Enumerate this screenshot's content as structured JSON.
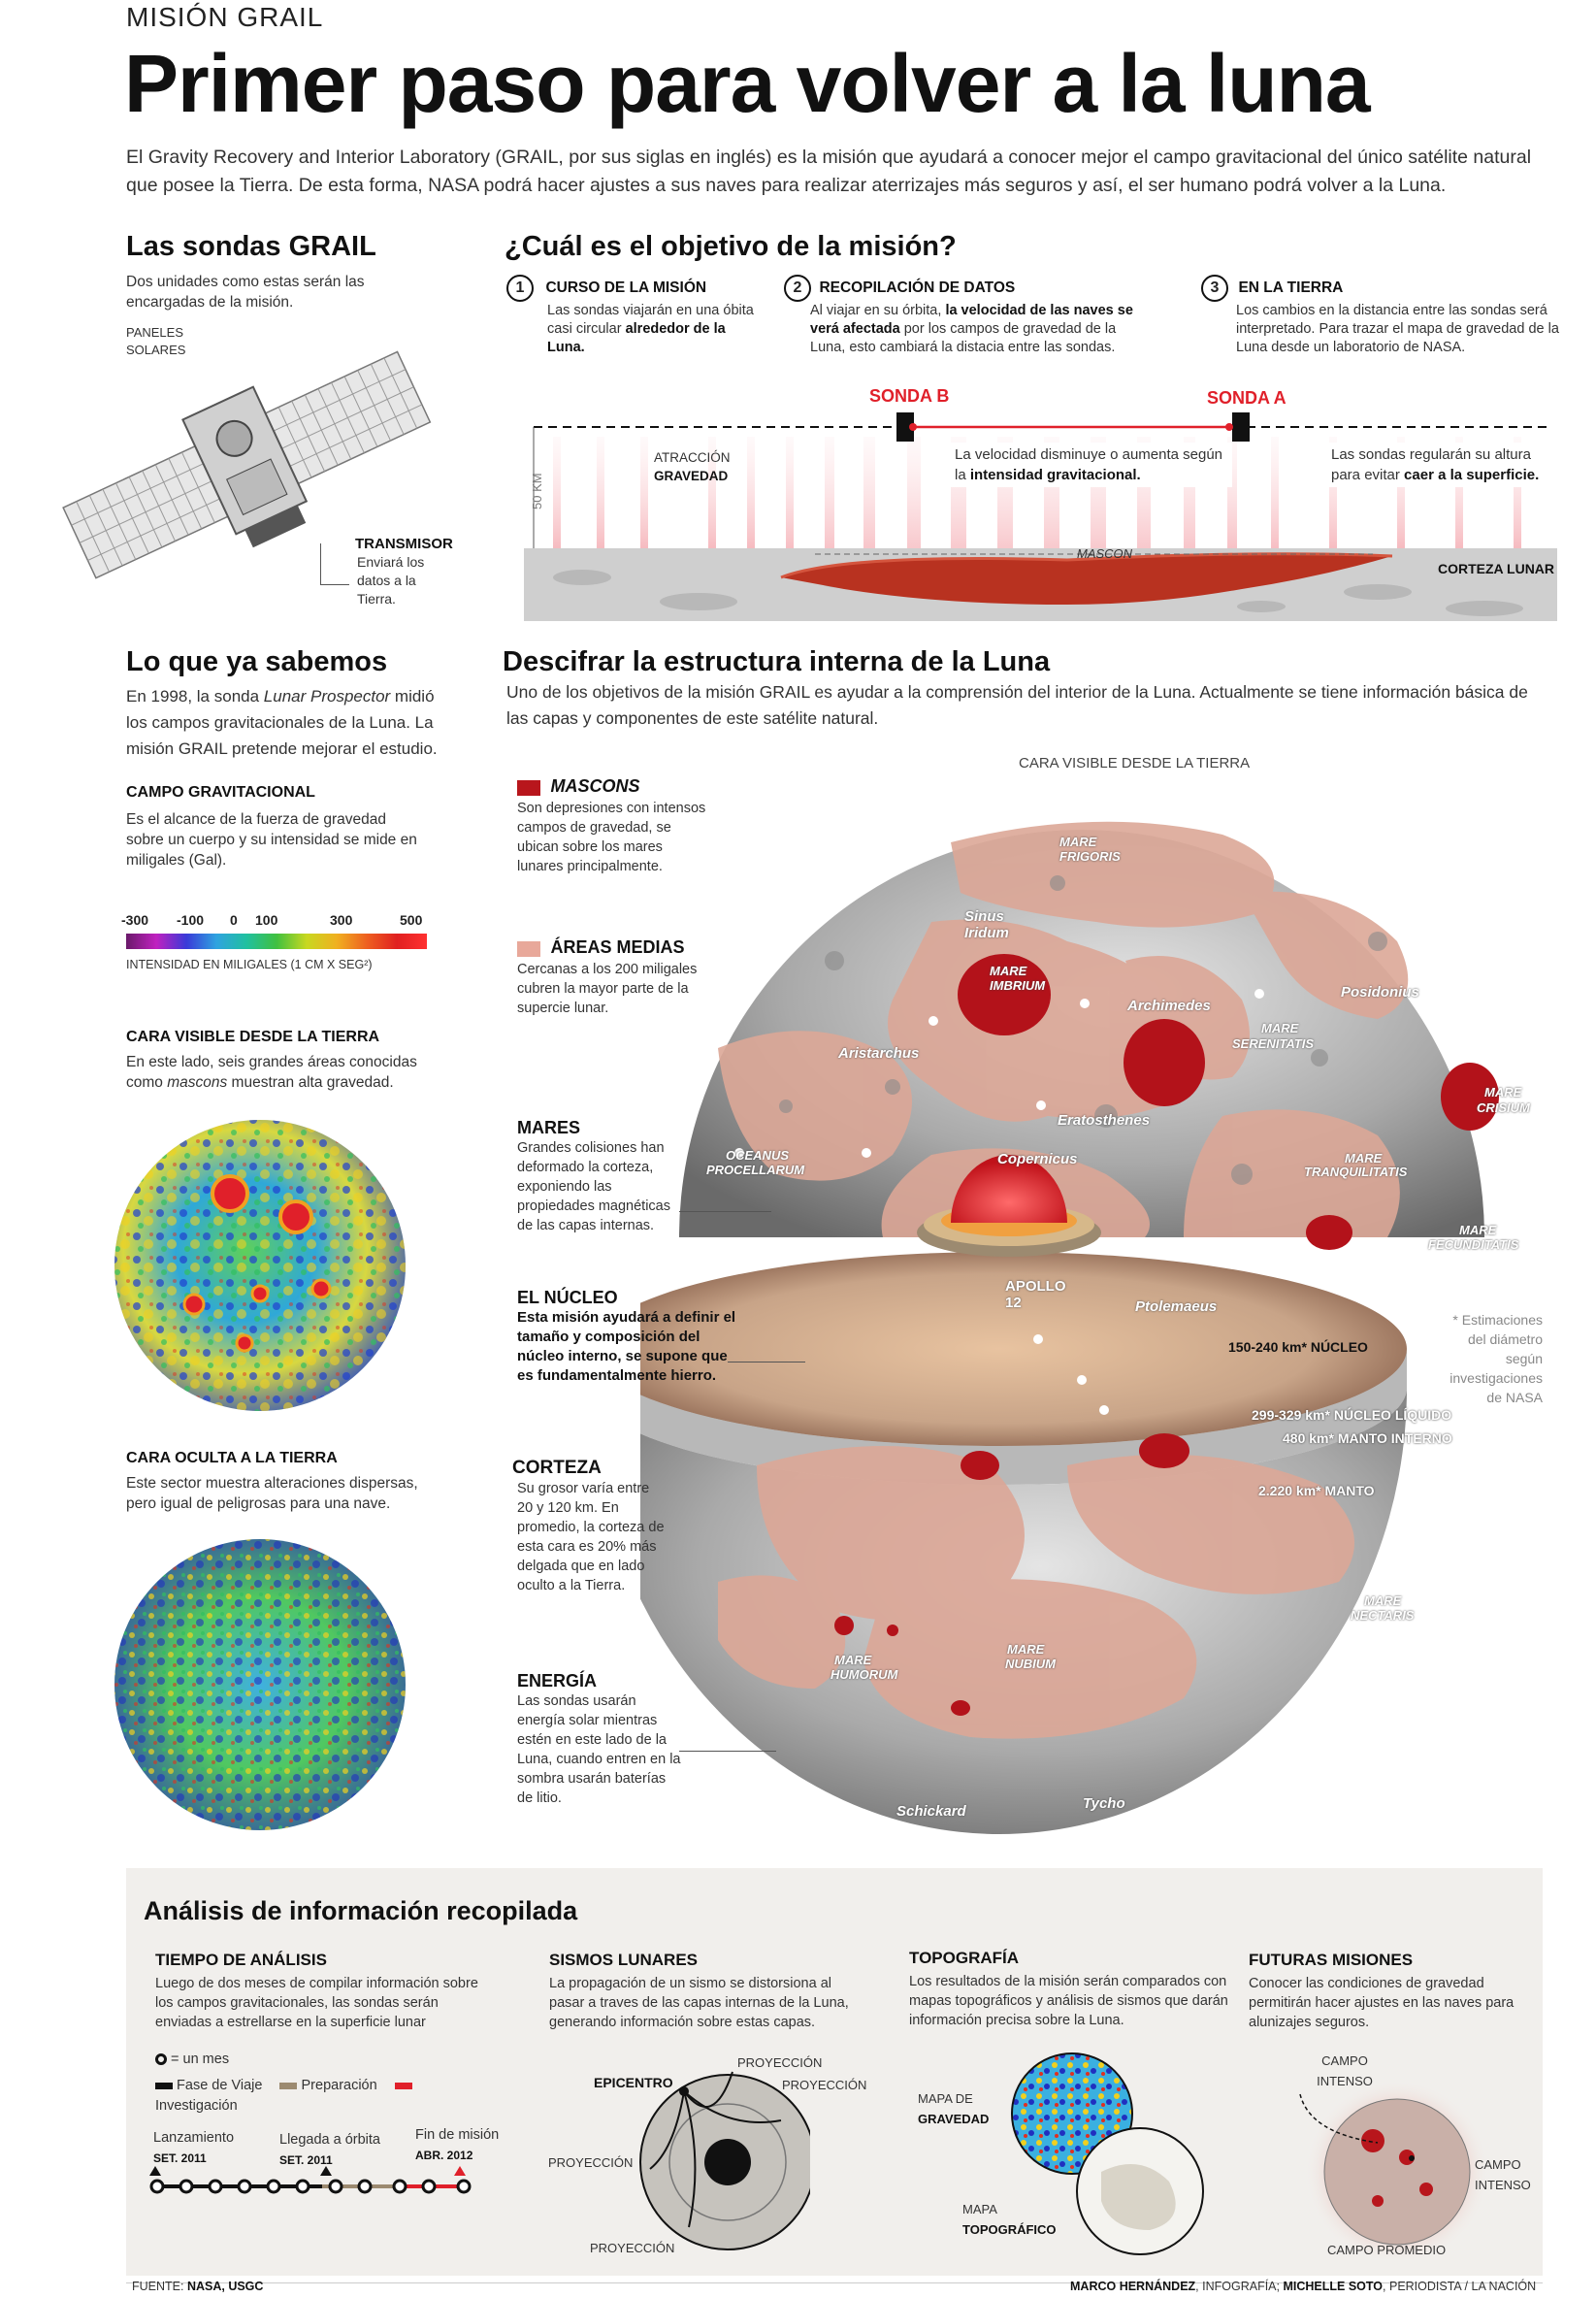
{
  "header": {
    "kicker": "MISIÓN GRAIL",
    "title": "Primer paso para volver a la luna",
    "intro": "El Gravity Recovery and Interior Laboratory (GRAIL, por sus siglas en inglés) es la misión que ayudará a conocer mejor el campo gravitacional del único satélite natural que posee la Tierra. De esta forma, NASA podrá hacer ajustes a sus naves para realizar aterrizajes más seguros y así, el ser humano podrá volver a la Luna."
  },
  "sondas": {
    "title": "Las sondas GRAIL",
    "desc": "Dos unidades como estas serán las encargadas de la misión.",
    "paneles": "PANELES",
    "solares": "SOLARES",
    "transmisor": "TRANSMISOR",
    "transmisor_desc": "Enviará los datos a la Tierra."
  },
  "objetivo": {
    "title": "¿Cuál es el objetivo de la misión?",
    "steps": [
      {
        "num": "1",
        "title": "CURSO DE LA MISIÓN",
        "text_a": "Las sondas viajarán en una óbita casi circular ",
        "text_b": "alrededor de la Luna."
      },
      {
        "num": "2",
        "title": "RECOPILACIÓN DE DATOS",
        "text_a": "Al viajar en su órbita, ",
        "text_b": "la velocidad de las naves se verá afectada",
        "text_c": " por los campos de gravedad de la Luna, esto cambiará la distacia entre las sondas."
      },
      {
        "num": "3",
        "title": "EN LA TIERRA",
        "text_a": "Los cambios en la distancia entre las sondas será interpretado. Para trazar el mapa de gravedad de la Luna desde un laboratorio de NASA."
      }
    ],
    "sonda_b": "SONDA B",
    "sonda_a": "SONDA A",
    "atraccion": "ATRACCIÓN",
    "gravedad": "GRAVEDAD",
    "km50": "50 KM",
    "velocidad_a": "La velocidad disminuye o aumenta según la ",
    "velocidad_b": "intensidad gravitacional.",
    "regularan_a": "Las sondas regularán su altura para evitar ",
    "regularan_b": "caer a la superficie.",
    "mascon": "MASCON",
    "corteza": "CORTEZA LUNAR"
  },
  "sabemos": {
    "title": "Lo que ya sabemos",
    "text_a": "En 1998, la sonda ",
    "text_em": "Lunar Prospector",
    "text_b": " midió los campos gravitacionales de la Luna. La misión GRAIL pretende mejorar el estudio.",
    "campo_title": "CAMPO GRAVITACIONAL",
    "campo_desc": "Es el alcance de la fuerza de gravedad sobre un cuerpo y su intensidad se mide en miligales (Gal).",
    "scale": [
      "-300",
      "-100",
      "0",
      "100",
      "300",
      "500"
    ],
    "scale_label": "INTENSIDAD EN MILIGALES (1 CM X SEG²)",
    "visible_title": "CARA VISIBLE DESDE LA TIERRA",
    "visible_desc_a": "En este lado, seis grandes áreas conocidas como ",
    "visible_desc_em": "mascons",
    "visible_desc_b": " muestran alta gravedad.",
    "oculta_title": "CARA OCULTA A LA TIERRA",
    "oculta_desc": "Este sector muestra alteraciones dispersas, pero igual de peligrosas para una nave."
  },
  "estructura": {
    "title": "Descifrar la estructura interna de la Luna",
    "desc": "Uno de los objetivos de la misión GRAIL es ayudar a la comprensión del interior de la Luna. Actualmente se tiene información básica de las capas y componentes de este satélite natural.",
    "cara_visible": "CARA VISIBLE DESDE LA TIERRA",
    "mascons_title": "MASCONS",
    "mascons_desc": "Son depresiones con intensos campos de gravedad, se ubican sobre los mares lunares principalmente.",
    "areas_title": "ÁREAS MEDIAS",
    "areas_desc": "Cercanas a los 200 miligales cubren la mayor parte de la supercie lunar.",
    "mares_title": "MARES",
    "mares_desc": "Grandes colisiones han deformado la corteza, exponiendo las propiedades magnéticas de las capas internas.",
    "nucleo_title": "EL NÚCLEO",
    "nucleo_desc": "Esta misión ayudará a definir el tamaño y composición del núcleo interno, se supone que es fundamentalmente hierro.",
    "corteza_title": "CORTEZA",
    "corteza_desc": "Su grosor varía entre 20 y 120 km. En promedio, la corteza de esta cara es 20% más delgada que en lado oculto a la Tierra.",
    "energia_title": "ENERGÍA",
    "energia_desc": "Las sondas usarán energía solar mientras estén en este lado de la Luna, cuando entren en la sombra usarán baterías de litio.",
    "estimaciones": "* Estimaciones del diámetro según investigaciones de NASA",
    "layers": [
      "150-240 km* NÚCLEO",
      "299-329 km*  NÚCLEO LÍQUIDO",
      "480 km* MANTO INTERNO",
      "2.220 km* MANTO"
    ],
    "places": [
      "MARE FRIGORIS",
      "Sinus Iridum",
      "MARE IMBRIUM",
      "Archimedes",
      "Posidonius",
      "MARE",
      "SERENITATIS",
      "Aristarchus",
      "MARE",
      "CRISIUM",
      "Eratosthenes",
      "OCEANUS",
      "PROCELLARUM",
      "Copernicus",
      "MARE",
      "TRANQUILITATIS",
      "MARE",
      "FECUNDITATIS",
      "APOLLO 12",
      "Ptolemaeus",
      "MARE",
      "NECTARIS",
      "MARE",
      "HUMORUM",
      "MARE",
      "NUBIUM",
      "Tycho",
      "Schickard"
    ]
  },
  "analisis": {
    "title": "Análisis de información recopilada",
    "tiempo_title": "TIEMPO DE ANÁLISIS",
    "tiempo_desc": "Luego de dos meses de compilar información sobre los campos gravitacionales, las sondas serán enviadas a estrellarse en la superficie lunar",
    "un_mes": "= un mes",
    "fase_viaje": "Fase de Viaje",
    "preparacion": "Preparación",
    "investigacion": "Investigación",
    "lanzamiento": "Lanzamiento",
    "lanzamiento_date": "SET. 2011",
    "llegada": "Llegada a órbita",
    "llegada_date": "SET. 2011",
    "fin": "Fin de misión",
    "fin_date": "ABR. 2012",
    "sismos_title": "SISMOS LUNARES",
    "sismos_desc": "La propagación de un sismo se distorsiona al pasar a traves de las capas internas de la Luna, generando información sobre estas capas.",
    "epicentro": "EPICENTRO",
    "proyeccion": "PROYECCIÓN",
    "topo_title": "TOPOGRAFÍA",
    "topo_desc": "Los resultados de la misión serán comparados con mapas topográficos y análisis de sismos que darán información precisa sobre la Luna.",
    "mapa_de": "MAPA DE",
    "gravedad": "GRAVEDAD",
    "mapa": "MAPA",
    "topografico": "TOPOGRÁFICO",
    "futuras_title": "FUTURAS MISIONES",
    "futuras_desc": "Conocer las condiciones de gravedad permitirán hacer ajustes en las naves para alunizajes seguros.",
    "campo_intenso": "CAMPO INTENSO",
    "campo_promedio": "CAMPO PROMEDIO"
  },
  "footer": {
    "fuente_label": "FUENTE: ",
    "fuente": "NASA, USGC",
    "credits_a": "MARCO HERNÁNDEZ",
    "credits_b": ", INFOGRAFÍA; ",
    "credits_c": "MICHELLE SOTO",
    "credits_d": ", PERIODISTA / LA NACIÓN"
  },
  "colors": {
    "accent_red": "#e0202a",
    "mascon_red": "#b8161c",
    "medium_area": "#e8a89a",
    "panel_bg": "#f1efec"
  }
}
